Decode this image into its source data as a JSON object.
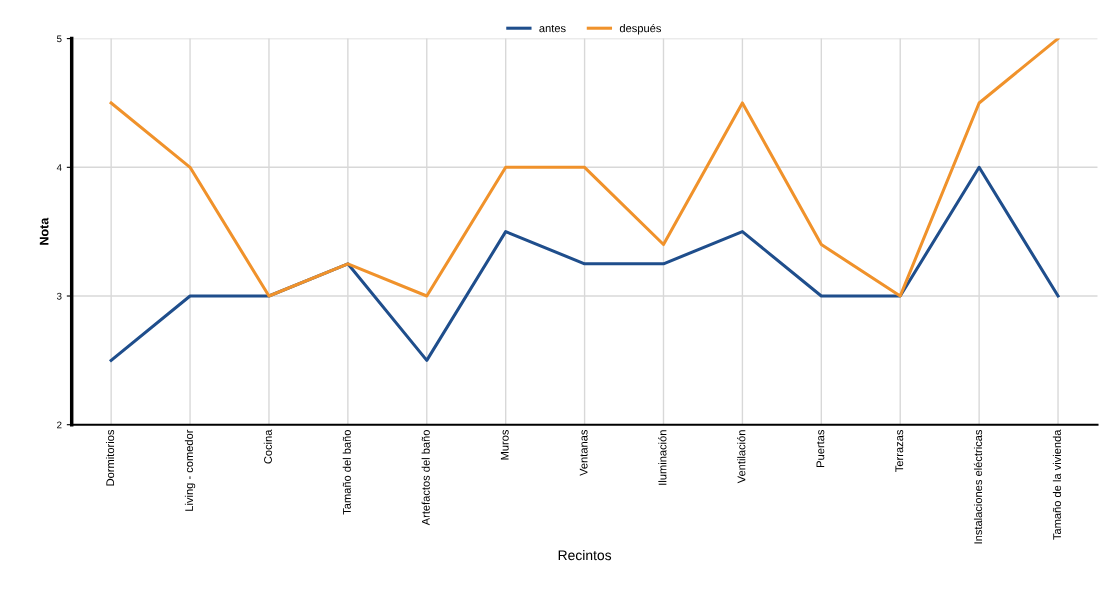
{
  "chart_data": {
    "type": "line",
    "xlabel": "Recintos",
    "ylabel": "Nota",
    "categories": [
      "Dormitorios",
      "Living - comedor",
      "Cocina",
      "Tamaño del baño",
      "Artefactos del baño",
      "Muros",
      "Ventanas",
      "Iluminación",
      "Ventilación",
      "Puertas",
      "Terrazas",
      "Instalaciones eléctricas",
      "Tamaño de la vivienda"
    ],
    "series": [
      {
        "name": "antes",
        "color": "#1f4e8c",
        "values": [
          2.5,
          3,
          3,
          3.25,
          2.5,
          3.5,
          3.25,
          3.25,
          3.5,
          3,
          3,
          4,
          3
        ]
      },
      {
        "name": "después",
        "color": "#f0922b",
        "values": [
          4.5,
          4,
          3,
          3.25,
          3,
          4,
          4,
          3.4,
          4.5,
          3.4,
          3,
          4.5,
          5
        ]
      }
    ],
    "ylim": [
      2,
      5
    ],
    "yticks": [
      2,
      3,
      4,
      5
    ],
    "grid": true,
    "legend": "top",
    "marker": "none",
    "line_style": "solid"
  }
}
